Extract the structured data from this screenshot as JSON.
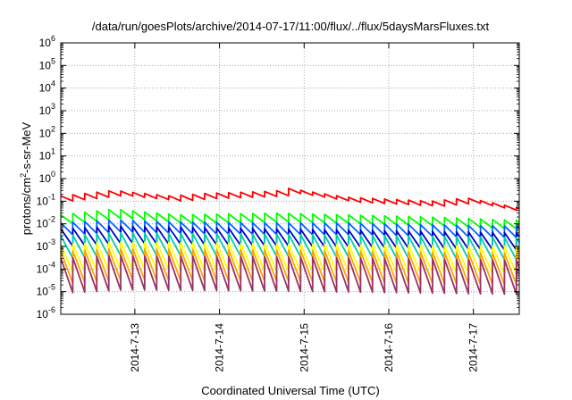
{
  "chart_data": {
    "type": "line",
    "title": "/data/run/goesPlots/archive/2014-07-17/11:00/flux/../flux/5daysMarsFluxes.txt",
    "xlabel": "Coordinated Universal Time (UTC)",
    "ylabel": "protons/cm2-s-sr-MeV",
    "ylabel_parts": {
      "pre": "protons/cm",
      "sup": "2",
      "post": "-s-sr-MeV"
    },
    "yscale": "log",
    "ylim": [
      1e-06,
      1000000.0
    ],
    "yticks": [
      {
        "value": 1e-06,
        "base": "10",
        "exp": "-6"
      },
      {
        "value": 1e-05,
        "base": "10",
        "exp": "-5"
      },
      {
        "value": 0.0001,
        "base": "10",
        "exp": "-4"
      },
      {
        "value": 0.001,
        "base": "10",
        "exp": "-3"
      },
      {
        "value": 0.01,
        "base": "10",
        "exp": "-2"
      },
      {
        "value": 0.1,
        "base": "10",
        "exp": "-1"
      },
      {
        "value": 1.0,
        "base": "10",
        "exp": "0"
      },
      {
        "value": 10.0,
        "base": "10",
        "exp": "1"
      },
      {
        "value": 100.0,
        "base": "10",
        "exp": "2"
      },
      {
        "value": 1000.0,
        "base": "10",
        "exp": "3"
      },
      {
        "value": 10000.0,
        "base": "10",
        "exp": "4"
      },
      {
        "value": 100000.0,
        "base": "10",
        "exp": "5"
      },
      {
        "value": 1000000.0,
        "base": "10",
        "exp": "6"
      }
    ],
    "xlim": [
      "2014-07-12T03:00",
      "2014-07-17T13:00"
    ],
    "xticks": [
      {
        "value": "2014-07-13T00:00",
        "label": "2014-7-13"
      },
      {
        "value": "2014-07-14T00:00",
        "label": "2014-7-14"
      },
      {
        "value": "2014-07-15T00:00",
        "label": "2014-7-15"
      },
      {
        "value": "2014-07-16T00:00",
        "label": "2014-7-16"
      },
      {
        "value": "2014-07-17T00:00",
        "label": "2014-7-17"
      }
    ],
    "grid": true,
    "grid_style": "dotted",
    "sawtooth_period_hours": 3.4,
    "series": [
      {
        "color": "#ff0000",
        "peak_points": [
          [
            "2014-07-12T03:00",
            0.17
          ],
          [
            "2014-07-12T18:00",
            0.3
          ],
          [
            "2014-07-13T10:00",
            0.17
          ],
          [
            "2014-07-13T20:00",
            0.22
          ],
          [
            "2014-07-14T16:00",
            0.28
          ],
          [
            "2014-07-14T18:00",
            0.4
          ],
          [
            "2014-07-15T12:00",
            0.15
          ],
          [
            "2014-07-16T12:00",
            0.1
          ],
          [
            "2014-07-16T22:00",
            0.14
          ],
          [
            "2014-07-17T13:00",
            0.05
          ]
        ],
        "trough_ratio": 0.6
      },
      {
        "color": "#00ff00",
        "peak_points": [
          [
            "2014-07-12T03:00",
            0.025
          ],
          [
            "2014-07-12T18:00",
            0.045
          ],
          [
            "2014-07-13T12:00",
            0.025
          ],
          [
            "2014-07-14T16:00",
            0.03
          ],
          [
            "2014-07-15T12:00",
            0.025
          ],
          [
            "2014-07-16T12:00",
            0.02
          ],
          [
            "2014-07-17T13:00",
            0.014
          ]
        ],
        "trough_ratio": 0.4
      },
      {
        "color": "#0066ff",
        "peak_points": [
          [
            "2014-07-12T03:00",
            0.011
          ],
          [
            "2014-07-12T18:00",
            0.015
          ],
          [
            "2014-07-13T12:00",
            0.012
          ],
          [
            "2014-07-14T16:00",
            0.011
          ],
          [
            "2014-07-15T12:00",
            0.011
          ],
          [
            "2014-07-16T12:00",
            0.009
          ],
          [
            "2014-07-17T13:00",
            0.008
          ]
        ],
        "trough_ratio": 0.3
      },
      {
        "color": "#0000cc",
        "peak_points": [
          [
            "2014-07-12T03:00",
            0.006
          ],
          [
            "2014-07-12T18:00",
            0.008
          ],
          [
            "2014-07-14T16:00",
            0.006
          ],
          [
            "2014-07-17T13:00",
            0.004
          ]
        ],
        "trough_ratio": 0.17
      },
      {
        "color": "#00ccaa",
        "peak_points": [
          [
            "2014-07-12T03:00",
            0.003
          ],
          [
            "2014-07-12T18:00",
            0.004
          ],
          [
            "2014-07-14T16:00",
            0.0035
          ],
          [
            "2014-07-17T13:00",
            0.0025
          ]
        ],
        "trough_ratio": 0.1
      },
      {
        "color": "#ffff00",
        "peak_points": [
          [
            "2014-07-12T03:00",
            0.0012
          ],
          [
            "2014-07-12T18:00",
            0.0016
          ],
          [
            "2014-07-14T16:00",
            0.0013
          ],
          [
            "2014-07-17T13:00",
            0.001
          ]
        ],
        "trough_ratio": 0.06
      },
      {
        "color": "#ffa500",
        "peak_points": [
          [
            "2014-07-12T03:00",
            0.0006
          ],
          [
            "2014-07-12T18:00",
            0.0008
          ],
          [
            "2014-07-14T16:00",
            0.0007
          ],
          [
            "2014-07-17T13:00",
            0.0005
          ]
        ],
        "trough_ratio": 0.04
      },
      {
        "color": "#993366",
        "peak_points": [
          [
            "2014-07-12T03:00",
            0.0003
          ],
          [
            "2014-07-12T18:00",
            0.0004
          ],
          [
            "2014-07-14T16:00",
            0.00035
          ],
          [
            "2014-07-17T13:00",
            0.00025
          ]
        ],
        "trough_ratio": 0.03
      }
    ]
  }
}
